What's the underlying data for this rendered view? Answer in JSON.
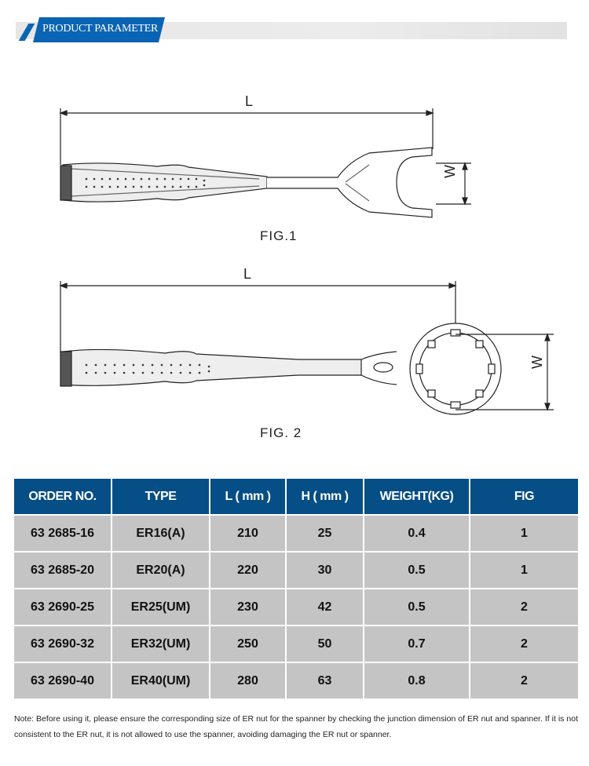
{
  "header": {
    "title": "PRODUCT PARAMETER"
  },
  "figures": [
    {
      "caption": "FIG.1",
      "length_label": "L",
      "width_label": "W"
    },
    {
      "caption": "FIG. 2",
      "length_label": "L",
      "width_label": "W"
    }
  ],
  "table": {
    "headers": [
      "ORDER NO.",
      "TYPE",
      "L ( mm )",
      "H ( mm )",
      "WEIGHT(KG)",
      "FIG"
    ],
    "rows": [
      [
        "63 2685-16",
        "ER16(A)",
        "210",
        "25",
        "0.4",
        "1"
      ],
      [
        "63 2685-20",
        "ER20(A)",
        "220",
        "30",
        "0.5",
        "1"
      ],
      [
        "63 2690-25",
        "ER25(UM)",
        "230",
        "42",
        "0.5",
        "2"
      ],
      [
        "63 2690-32",
        "ER32(UM)",
        "250",
        "50",
        "0.7",
        "2"
      ],
      [
        "63 2690-40",
        "ER40(UM)",
        "280",
        "63",
        "0.8",
        "2"
      ]
    ]
  },
  "note": "Note: Before using it, please ensure the corresponding size of ER nut for the spanner by checking the junction dimension of ER nut and spanner. If it is not consistent to the ER nut, it is not allowed to use the spanner, avoiding damaging the ER nut or spanner.",
  "colors": {
    "header_bg": "#064e86",
    "cell_bg": "#c4c4c4",
    "tag": "#0a64b4"
  }
}
